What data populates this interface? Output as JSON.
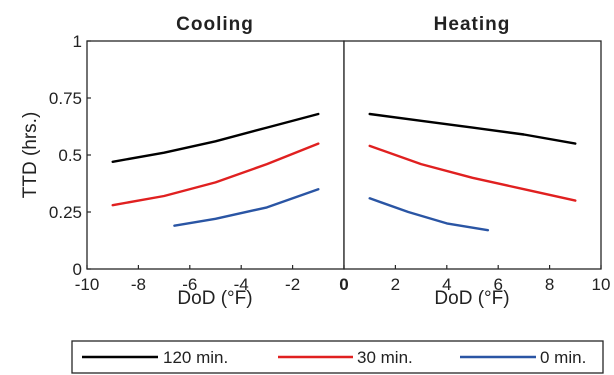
{
  "chart_data": [
    {
      "type": "line",
      "title": "Cooling",
      "xlabel": "DoD (°F)",
      "ylabel": "TTD (hrs.)",
      "xlim": [
        -10,
        0
      ],
      "ylim": [
        0,
        1
      ],
      "xticks": [
        -10,
        -8,
        -6,
        -4,
        -2
      ],
      "xtick_labels": [
        "-10",
        "-8",
        "-6",
        "-4",
        "-2"
      ],
      "yticks": [
        0,
        0.25,
        0.5,
        0.75,
        1
      ],
      "ytick_labels": [
        "0",
        "0.25",
        "0.5",
        "0.75",
        "1"
      ],
      "grid": false,
      "series": [
        {
          "name": "120 min.",
          "color": "#000000",
          "x": [
            -9,
            -7,
            -5,
            -3,
            -1
          ],
          "y": [
            0.47,
            0.51,
            0.56,
            0.62,
            0.68
          ]
        },
        {
          "name": "30 min.",
          "color": "#e02020",
          "x": [
            -9,
            -7,
            -5,
            -3,
            -1
          ],
          "y": [
            0.28,
            0.32,
            0.38,
            0.46,
            0.55
          ]
        },
        {
          "name": "0 min.",
          "color": "#2a55a4",
          "x": [
            -6.6,
            -5,
            -3,
            -1
          ],
          "y": [
            0.19,
            0.22,
            0.27,
            0.35
          ]
        }
      ]
    },
    {
      "type": "line",
      "title": "Heating",
      "xlabel": "DoD (°F)",
      "ylabel": "",
      "xlim": [
        0,
        10
      ],
      "ylim": [
        0,
        1
      ],
      "xticks": [
        0,
        2,
        4,
        6,
        8,
        10
      ],
      "xtick_labels": [
        "0",
        "2",
        "4",
        "6",
        "8",
        "10"
      ],
      "grid": false,
      "series": [
        {
          "name": "120 min.",
          "color": "#000000",
          "x": [
            1,
            3,
            5,
            7,
            9
          ],
          "y": [
            0.68,
            0.65,
            0.62,
            0.59,
            0.55
          ]
        },
        {
          "name": "30 min.",
          "color": "#e02020",
          "x": [
            1,
            3,
            5,
            7,
            9
          ],
          "y": [
            0.54,
            0.46,
            0.4,
            0.35,
            0.3
          ]
        },
        {
          "name": "0 min.",
          "color": "#2a55a4",
          "x": [
            1,
            2.5,
            4,
            5.6
          ],
          "y": [
            0.31,
            0.25,
            0.2,
            0.17
          ]
        }
      ]
    }
  ],
  "legend": {
    "placement": "bottom",
    "entries": [
      "120 min.",
      "30 min.",
      "0 min."
    ]
  }
}
